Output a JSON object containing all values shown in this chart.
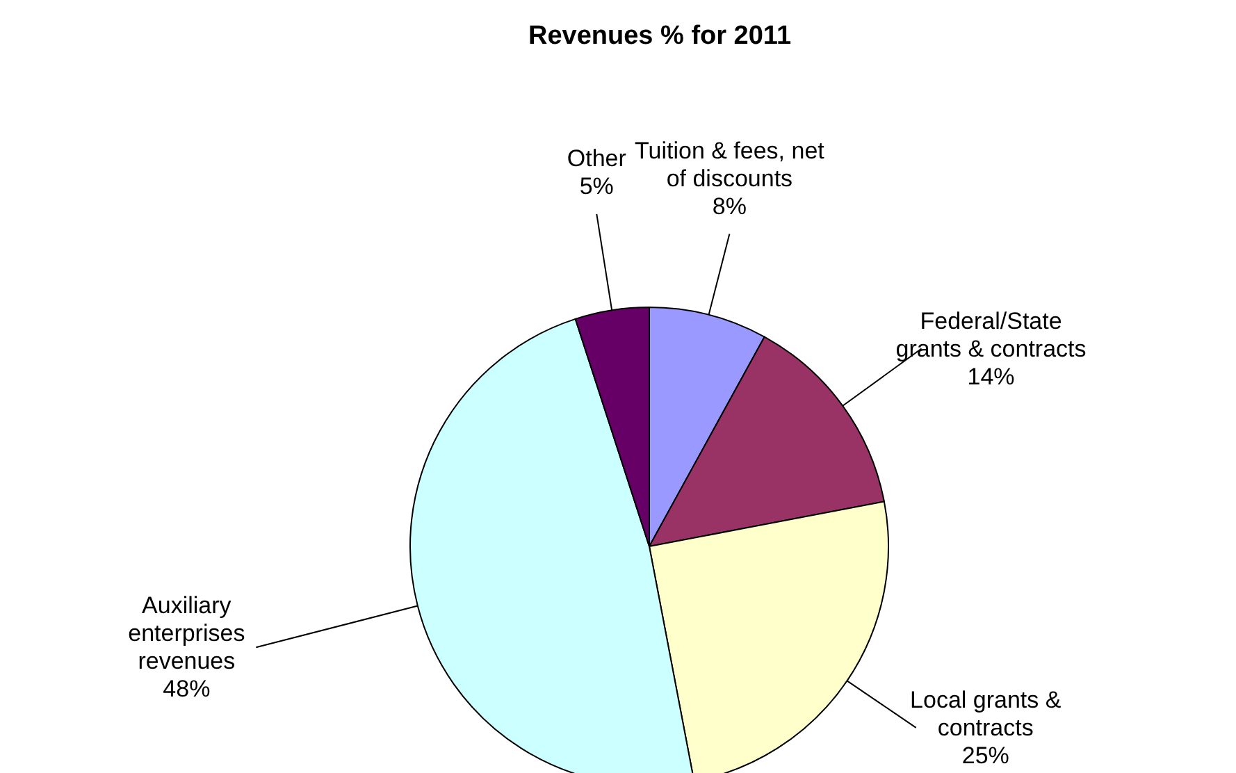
{
  "chart_data": {
    "type": "pie",
    "title": "Revenues % for 2011",
    "categories": [
      "Tuition & fees, net of discounts",
      "Federal/State grants & contracts",
      "Local grants & contracts",
      "Auxiliary enterprises revenues",
      "Other"
    ],
    "values": [
      8,
      14,
      25,
      48,
      5
    ],
    "value_labels": [
      "8%",
      "14%",
      "25%",
      "48%",
      "5%"
    ],
    "colors": [
      "#9999ff",
      "#993366",
      "#ffffcc",
      "#ccffff",
      "#660066"
    ],
    "legend": false
  }
}
